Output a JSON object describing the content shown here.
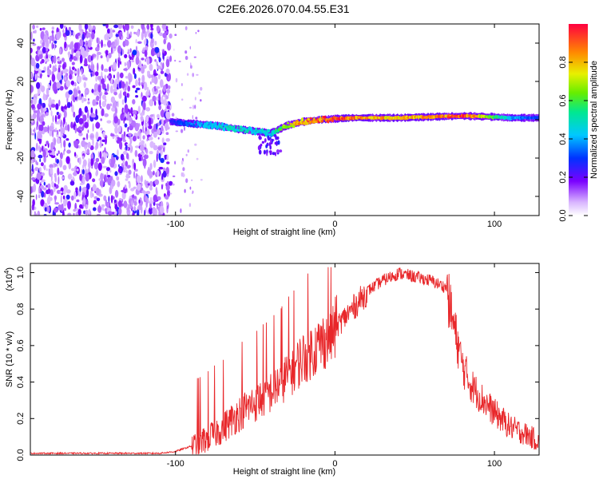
{
  "title": "C2E6.2026.070.04.55.E31",
  "chart_data": [
    {
      "type": "heatmap",
      "name": "spectrogram",
      "xlabel": "Height of straight line (km)",
      "ylabel": "Frequency (Hz)",
      "xlim": [
        -191,
        128
      ],
      "ylim": [
        -50,
        50
      ],
      "xticks": [
        -100,
        0,
        100
      ],
      "xtick_labels": [
        "-100",
        "0",
        "100"
      ],
      "yticks": [
        -40,
        -20,
        0,
        20,
        40
      ],
      "ytick_labels": [
        "-40",
        "-20",
        "0",
        "20",
        "40"
      ],
      "noise_region_x": [
        -191,
        -103
      ],
      "signal_track": {
        "x": [
          -103,
          -90,
          -75,
          -60,
          -50,
          -40,
          -35,
          -30,
          -20,
          -10,
          0,
          10,
          20,
          40,
          60,
          80,
          100,
          110,
          128
        ],
        "freq": [
          -1,
          -2,
          -3,
          -5,
          -6,
          -7,
          -5,
          -3,
          -1,
          0,
          0.5,
          1,
          1,
          1,
          1.5,
          2,
          1.5,
          1,
          1
        ],
        "amplitude": [
          0.25,
          0.35,
          0.45,
          0.5,
          0.45,
          0.45,
          0.6,
          0.7,
          0.85,
          0.9,
          0.95,
          0.9,
          0.85,
          0.8,
          0.85,
          0.95,
          0.6,
          0.4,
          0.3
        ]
      },
      "colorbar": {
        "label": "Normalized spectral amplitude",
        "range": [
          0,
          1
        ],
        "ticks": [
          0.0,
          0.2,
          0.4,
          0.6,
          0.8
        ],
        "tick_labels": [
          "0.0",
          "0.2",
          "0.4",
          "0.6",
          "0.8"
        ]
      }
    },
    {
      "type": "line",
      "name": "snr",
      "xlabel": "Height of straight line (km)",
      "ylabel": "SNR (10 * v/v)",
      "scale_label": "(x10",
      "scale_exp": "4",
      "xlim": [
        -191,
        128
      ],
      "ylim": [
        0,
        1.05
      ],
      "xticks": [
        -100,
        0,
        100
      ],
      "xtick_labels": [
        "-100",
        "0",
        "100"
      ],
      "yticks": [
        0.0,
        0.2,
        0.4,
        0.6,
        0.8,
        1.0
      ],
      "ytick_labels": [
        "0.0",
        "0.2",
        "0.4",
        "0.6",
        "0.8",
        "1.0"
      ],
      "color": "#e8272a",
      "envelope": {
        "x": [
          -191,
          -110,
          -100,
          -90,
          -80,
          -70,
          -60,
          -50,
          -40,
          -30,
          -20,
          -10,
          0,
          10,
          20,
          30,
          40,
          50,
          60,
          70,
          75,
          80,
          85,
          90,
          100,
          110,
          120,
          128
        ],
        "y": [
          0.01,
          0.01,
          0.02,
          0.05,
          0.1,
          0.16,
          0.24,
          0.3,
          0.36,
          0.45,
          0.55,
          0.62,
          0.7,
          0.8,
          0.9,
          0.96,
          1.0,
          0.98,
          0.96,
          0.92,
          0.7,
          0.5,
          0.4,
          0.34,
          0.24,
          0.16,
          0.12,
          0.08
        ]
      },
      "noise_amplitude": [
        {
          "x": [
            -191,
            -90
          ],
          "amp": 0.02
        },
        {
          "x": [
            -90,
            0
          ],
          "amp": 0.32
        },
        {
          "x": [
            0,
            20
          ],
          "amp": 0.12
        },
        {
          "x": [
            20,
            70
          ],
          "amp": 0.05
        },
        {
          "x": [
            70,
            128
          ],
          "amp": 0.25
        }
      ]
    }
  ]
}
